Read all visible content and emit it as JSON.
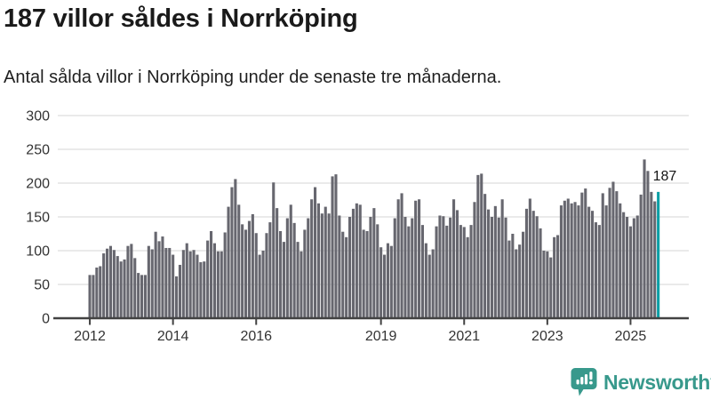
{
  "header": {
    "title": "187 villor såldes i Norrköping",
    "subtitle": "Antal sålda villor i Norrköping under de senaste tre månaderna."
  },
  "chart_data": {
    "type": "bar",
    "title": "187 villor såldes i Norrköping",
    "subtitle": "Antal sålda villor i Norrköping under de senaste tre månaderna.",
    "frequency": "monthly",
    "start_month": "2012-01",
    "values": [
      64,
      64,
      75,
      77,
      96,
      103,
      107,
      101,
      92,
      84,
      87,
      107,
      110,
      89,
      67,
      64,
      64,
      107,
      102,
      128,
      114,
      121,
      104,
      104,
      94,
      62,
      79,
      101,
      111,
      99,
      101,
      94,
      83,
      84,
      115,
      129,
      111,
      99,
      99,
      127,
      165,
      194,
      206,
      168,
      139,
      131,
      144,
      154,
      126,
      94,
      100,
      126,
      142,
      201,
      163,
      129,
      113,
      148,
      168,
      141,
      113,
      99,
      131,
      148,
      176,
      194,
      170,
      155,
      165,
      155,
      210,
      213,
      152,
      128,
      120,
      150,
      162,
      170,
      168,
      131,
      129,
      150,
      163,
      139,
      105,
      94,
      111,
      107,
      148,
      176,
      185,
      150,
      136,
      148,
      174,
      176,
      138,
      111,
      94,
      102,
      136,
      152,
      151,
      137,
      149,
      176,
      160,
      138,
      135,
      120,
      138,
      172,
      212,
      214,
      184,
      161,
      150,
      166,
      149,
      176,
      149,
      115,
      125,
      102,
      109,
      128,
      162,
      177,
      159,
      151,
      133,
      100,
      99,
      90,
      120,
      123,
      167,
      174,
      177,
      170,
      172,
      167,
      186,
      192,
      165,
      159,
      142,
      138,
      185,
      167,
      193,
      202,
      188,
      170,
      157,
      150,
      136,
      148,
      152,
      183,
      235,
      218,
      187,
      173,
      187
    ],
    "highlight": {
      "index": 164,
      "value": 187,
      "label": "187"
    },
    "ylim": [
      0,
      300
    ],
    "y_ticks": [
      0,
      50,
      100,
      150,
      200,
      250,
      300
    ],
    "x_tick_years": [
      2012,
      2014,
      2016,
      2019,
      2021,
      2023,
      2025
    ],
    "grid": true,
    "legend": "none",
    "colors": {
      "bar": "#67676f",
      "highlight": "#0a9fa6",
      "axis": "#424242",
      "gridline": "#dedede",
      "tick_label": "#333333",
      "annotation": "#141414"
    }
  },
  "footer": {
    "brand": "Newsworthy",
    "logo_color": "#38998c"
  }
}
